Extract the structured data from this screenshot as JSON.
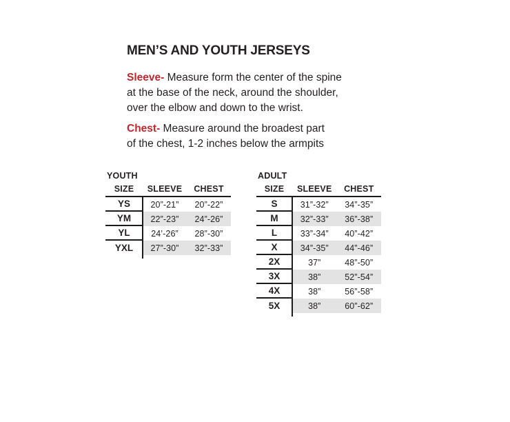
{
  "page": {
    "title": "MEN’S AND YOUTH JERSEYS"
  },
  "instructions": {
    "sleeve": {
      "term": "Sleeve-",
      "line1": "Measure form the center of the spine",
      "line2": "at the base of the neck, around the shoulder,",
      "line3": "over the elbow and down to the wrist."
    },
    "chest": {
      "term": "Chest-",
      "line1": "Measure around the broadest part",
      "line2": "of the chest, 1-2 inches below the armpits"
    }
  },
  "youth_table": {
    "label": "YOUTH",
    "columns": [
      "SIZE",
      "SLEEVE",
      "CHEST"
    ],
    "rows": [
      {
        "size": "YS",
        "sleeve": "20”-21”",
        "chest": "20”-22”"
      },
      {
        "size": "YM",
        "sleeve": "22”-23”",
        "chest": "24”-26”"
      },
      {
        "size": "YL",
        "sleeve": "24’-26”",
        "chest": "28”-30”"
      },
      {
        "size": "YXL",
        "sleeve": "27”-30”",
        "chest": "32”-33”"
      }
    ]
  },
  "adult_table": {
    "label": "ADULT",
    "columns": [
      "SIZE",
      "SLEEVE",
      "CHEST"
    ],
    "rows": [
      {
        "size": "S",
        "sleeve": "31”-32”",
        "chest": "34”-35”"
      },
      {
        "size": "M",
        "sleeve": "32”-33”",
        "chest": "36”-38”"
      },
      {
        "size": "L",
        "sleeve": "33”-34”",
        "chest": "40”-42”"
      },
      {
        "size": "X",
        "sleeve": "34”-35”",
        "chest": "44”-46”"
      },
      {
        "size": "2X",
        "sleeve": "37”",
        "chest": "48”-50”"
      },
      {
        "size": "3X",
        "sleeve": "38”",
        "chest": "52”-54”"
      },
      {
        "size": "4X",
        "sleeve": "38”",
        "chest": "56”-58”"
      },
      {
        "size": "5X",
        "sleeve": "38”",
        "chest": "60”-62”"
      }
    ]
  },
  "colors": {
    "accent_red": "#c1272d",
    "stripe_gray": "#e3e3e3",
    "line_black": "#1b1b1b",
    "text_black": "#231f20"
  }
}
